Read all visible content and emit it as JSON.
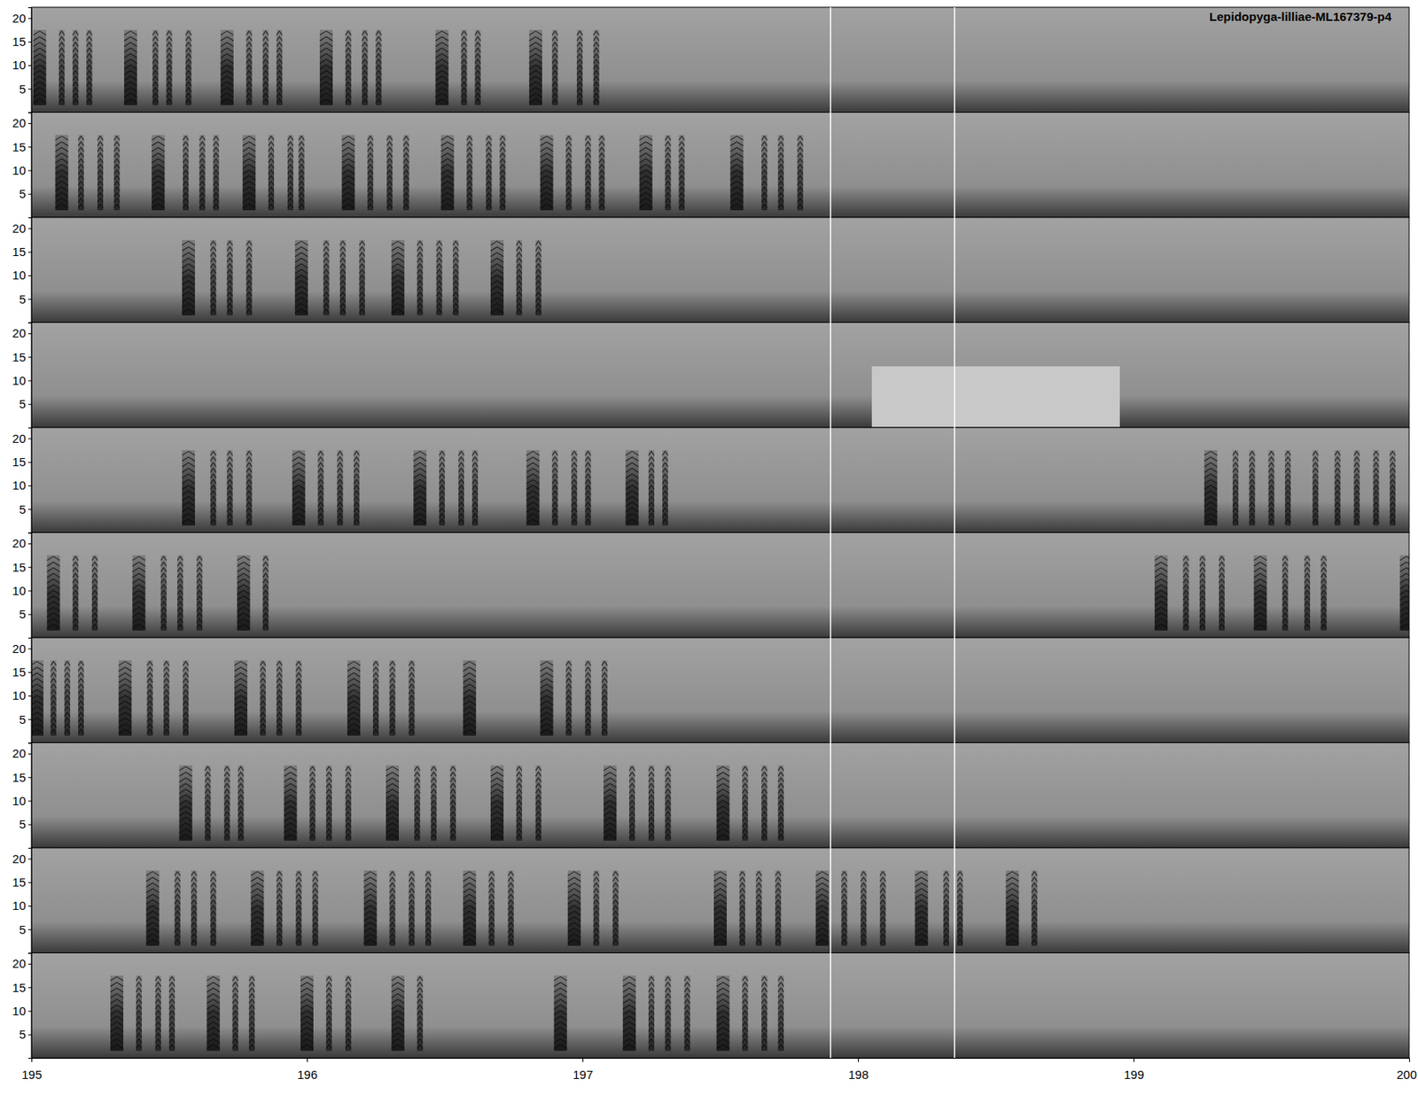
{
  "chart_data": {
    "type": "spectrogram",
    "title": "Lepidopyga-lilliae-ML167379-p4",
    "xlim": [
      195,
      200
    ],
    "xticks": [
      195,
      196,
      197,
      198,
      199,
      {
        "value": 200,
        "label": "200"
      }
    ],
    "ylim": [
      0,
      22.3
    ],
    "yticks": [
      5,
      10,
      15,
      20
    ],
    "note_freq": [
      1.5,
      17.5
    ],
    "markers": [
      197.9,
      198.35
    ],
    "rows": [
      {
        "notes": [
          195.03,
          195.11,
          195.16,
          195.21,
          195.36,
          195.45,
          195.5,
          195.57,
          195.71,
          195.79,
          195.85,
          195.9,
          196.07,
          196.15,
          196.21,
          196.26,
          196.49,
          196.57,
          196.62,
          196.83,
          196.9,
          196.99,
          197.05
        ],
        "bright_spans": []
      },
      {
        "notes": [
          195.11,
          195.18,
          195.25,
          195.31,
          195.46,
          195.56,
          195.62,
          195.67,
          195.79,
          195.87,
          195.94,
          195.98,
          196.15,
          196.23,
          196.3,
          196.36,
          196.51,
          196.59,
          196.66,
          196.71,
          196.87,
          196.95,
          197.02,
          197.07,
          197.23,
          197.31,
          197.36,
          197.56,
          197.66,
          197.72,
          197.79
        ],
        "bright_spans": []
      },
      {
        "notes": [
          195.57,
          195.66,
          195.72,
          195.79,
          195.98,
          196.07,
          196.13,
          196.2,
          196.33,
          196.41,
          196.48,
          196.54,
          196.69,
          196.77,
          196.84
        ],
        "bright_spans": []
      },
      {
        "notes": [],
        "bright_spans": [
          [
            198.05,
            198.95,
            0,
            13
          ]
        ]
      },
      {
        "notes": [
          195.57,
          195.66,
          195.72,
          195.79,
          195.97,
          196.05,
          196.12,
          196.18,
          196.41,
          196.49,
          196.56,
          196.61,
          196.82,
          196.9,
          196.97,
          197.02,
          197.18,
          197.25,
          197.3,
          199.28,
          199.37,
          199.43,
          199.5,
          199.56,
          199.66,
          199.74,
          199.81,
          199.88,
          199.94
        ],
        "bright_spans": []
      },
      {
        "notes": [
          195.08,
          195.16,
          195.23,
          195.39,
          195.48,
          195.54,
          195.61,
          195.77,
          195.85,
          199.1,
          199.19,
          199.25,
          199.32,
          199.46,
          199.55,
          199.63,
          199.69,
          199.99
        ],
        "bright_spans": []
      },
      {
        "notes": [
          195.02,
          195.08,
          195.13,
          195.18,
          195.34,
          195.43,
          195.49,
          195.56,
          195.76,
          195.84,
          195.9,
          195.97,
          196.17,
          196.25,
          196.31,
          196.38,
          196.59,
          196.87,
          196.95,
          197.02,
          197.08
        ],
        "bright_spans": []
      },
      {
        "notes": [
          195.56,
          195.64,
          195.71,
          195.76,
          195.94,
          196.02,
          196.08,
          196.15,
          196.31,
          196.4,
          196.46,
          196.53,
          196.69,
          196.77,
          196.84,
          197.1,
          197.18,
          197.25,
          197.31,
          197.51,
          197.59,
          197.66,
          197.72
        ],
        "bright_spans": []
      },
      {
        "notes": [
          195.44,
          195.53,
          195.59,
          195.66,
          195.82,
          195.9,
          195.97,
          196.03,
          196.23,
          196.31,
          196.38,
          196.44,
          196.59,
          196.67,
          196.74,
          196.97,
          197.05,
          197.12,
          197.5,
          197.58,
          197.64,
          197.71,
          197.87,
          197.95,
          198.02,
          198.09,
          198.23,
          198.32,
          198.37,
          198.56,
          198.64
        ],
        "bright_spans": []
      },
      {
        "notes": [
          195.31,
          195.39,
          195.46,
          195.51,
          195.66,
          195.74,
          195.8,
          196.0,
          196.08,
          196.15,
          196.33,
          196.41,
          196.92,
          197.17,
          197.25,
          197.31,
          197.38,
          197.51,
          197.59,
          197.66,
          197.72
        ],
        "bright_spans": []
      }
    ]
  }
}
